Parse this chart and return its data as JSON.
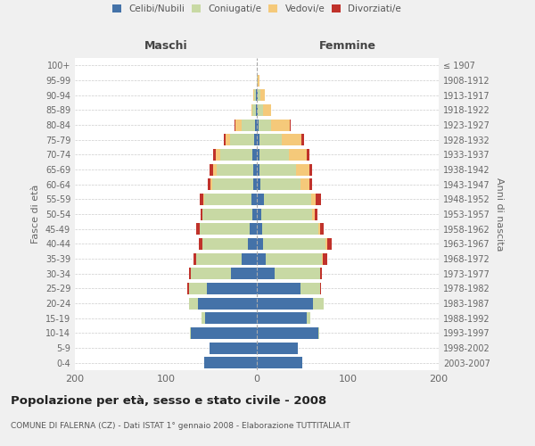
{
  "age_groups": [
    "0-4",
    "5-9",
    "10-14",
    "15-19",
    "20-24",
    "25-29",
    "30-34",
    "35-39",
    "40-44",
    "45-49",
    "50-54",
    "55-59",
    "60-64",
    "65-69",
    "70-74",
    "75-79",
    "80-84",
    "85-89",
    "90-94",
    "95-99",
    "100+"
  ],
  "birth_years": [
    "2003-2007",
    "1998-2002",
    "1993-1997",
    "1988-1992",
    "1983-1987",
    "1978-1982",
    "1973-1977",
    "1968-1972",
    "1963-1967",
    "1958-1962",
    "1953-1957",
    "1948-1952",
    "1943-1947",
    "1938-1942",
    "1933-1937",
    "1928-1932",
    "1923-1927",
    "1918-1922",
    "1913-1917",
    "1908-1912",
    "≤ 1907"
  ],
  "maschi": {
    "celibi": [
      58,
      52,
      73,
      57,
      65,
      55,
      28,
      17,
      10,
      8,
      5,
      6,
      4,
      4,
      5,
      3,
      2,
      1,
      1,
      0,
      0
    ],
    "coniugati": [
      0,
      0,
      1,
      4,
      10,
      20,
      45,
      50,
      50,
      55,
      55,
      52,
      45,
      40,
      35,
      26,
      15,
      4,
      2,
      0,
      0
    ],
    "vedovi": [
      0,
      0,
      0,
      0,
      0,
      0,
      0,
      0,
      0,
      0,
      0,
      1,
      2,
      4,
      5,
      5,
      7,
      1,
      1,
      0,
      0
    ],
    "divorziati": [
      0,
      0,
      0,
      0,
      0,
      1,
      2,
      3,
      4,
      4,
      2,
      4,
      3,
      4,
      3,
      2,
      1,
      0,
      0,
      0,
      0
    ]
  },
  "femmine": {
    "nubili": [
      50,
      45,
      68,
      55,
      62,
      48,
      20,
      10,
      7,
      6,
      5,
      8,
      4,
      3,
      3,
      3,
      2,
      1,
      1,
      0,
      0
    ],
    "coniugate": [
      0,
      0,
      1,
      4,
      12,
      22,
      50,
      62,
      68,
      62,
      56,
      52,
      44,
      40,
      32,
      24,
      14,
      6,
      3,
      1,
      0
    ],
    "vedove": [
      0,
      0,
      0,
      0,
      0,
      0,
      0,
      1,
      2,
      2,
      3,
      5,
      10,
      15,
      20,
      22,
      20,
      9,
      5,
      2,
      0
    ],
    "divorziate": [
      0,
      0,
      0,
      0,
      0,
      1,
      2,
      4,
      5,
      4,
      3,
      6,
      3,
      3,
      3,
      3,
      1,
      0,
      0,
      0,
      0
    ]
  },
  "colors": {
    "celibi": "#4472a8",
    "coniugati": "#c8d9a4",
    "vedovi": "#f5c97a",
    "divorziati": "#c0322b"
  },
  "xlim": 200,
  "title": "Popolazione per età, sesso e stato civile - 2008",
  "subtitle": "COMUNE DI FALERNA (CZ) - Dati ISTAT 1° gennaio 2008 - Elaborazione TUTTITALIA.IT",
  "ylabel_left": "Fasce di età",
  "ylabel_right": "Anni di nascita",
  "xlabel_maschi": "Maschi",
  "xlabel_femmine": "Femmine",
  "bg_color": "#f0f0f0",
  "plot_bg": "#ffffff"
}
